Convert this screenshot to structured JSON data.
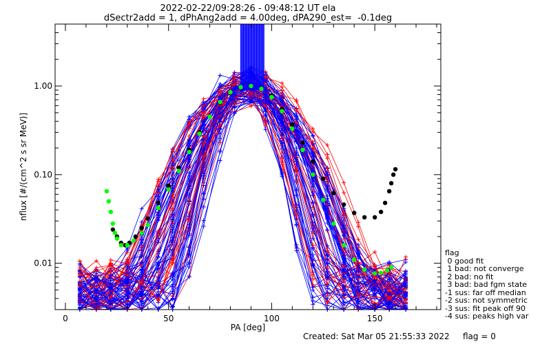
{
  "chart_data": {
    "type": "line",
    "title": "2022-02-22/09:28:26 - 09:48:12 UT ela",
    "subtitle": "dSectr2add = 1, dPhAng2add = 4.00deg, dPA290_est=  -0.1deg",
    "xlabel": "PA [deg]",
    "ylabel": "nflux [#/(cm^2 s sr MeV)]",
    "xlim": [
      -5,
      182
    ],
    "ylim": [
      0.003,
      5.0
    ],
    "yscale": "log",
    "x_ticks": [
      0,
      50,
      100,
      150
    ],
    "x_tick_labels": [
      "0",
      "50",
      "100",
      "150"
    ],
    "y_ticks": [
      0.01,
      0.1,
      1.0
    ],
    "y_tick_labels": [
      "0.01",
      "0.10",
      "1.00"
    ],
    "series": [
      {
        "color": "#000000",
        "marker": "dot",
        "x": [
          23,
          25,
          27,
          29,
          31,
          34,
          37,
          40,
          45,
          50,
          55,
          60,
          65,
          70,
          75,
          80,
          85,
          90,
          95,
          100,
          105,
          110,
          115,
          120,
          125,
          130,
          135,
          140,
          145,
          150,
          153,
          155,
          157,
          158,
          159,
          160
        ],
        "y": [
          0.024,
          0.02,
          0.017,
          0.016,
          0.017,
          0.02,
          0.025,
          0.032,
          0.048,
          0.075,
          0.12,
          0.19,
          0.3,
          0.45,
          0.65,
          0.84,
          0.96,
          1.0,
          0.94,
          0.78,
          0.55,
          0.37,
          0.23,
          0.14,
          0.09,
          0.062,
          0.046,
          0.037,
          0.033,
          0.033,
          0.038,
          0.048,
          0.065,
          0.08,
          0.1,
          0.115
        ]
      },
      {
        "color": "#00ff00",
        "marker": "dot",
        "x": [
          20,
          21,
          22,
          23,
          24,
          25,
          27,
          30,
          33,
          37,
          40,
          45,
          50,
          55,
          60,
          65,
          70,
          75,
          80,
          85,
          90,
          95,
          100,
          105,
          110,
          115,
          120,
          125,
          130,
          135,
          140,
          145,
          150,
          153,
          156,
          158
        ],
        "y": [
          0.065,
          0.05,
          0.038,
          0.028,
          0.022,
          0.019,
          0.016,
          0.016,
          0.018,
          0.022,
          0.027,
          0.042,
          0.068,
          0.11,
          0.18,
          0.29,
          0.45,
          0.66,
          0.85,
          0.97,
          1.0,
          0.93,
          0.75,
          0.52,
          0.33,
          0.19,
          0.1,
          0.052,
          0.028,
          0.016,
          0.011,
          0.0085,
          0.0077,
          0.0078,
          0.0083,
          0.009
        ]
      }
    ]
  },
  "legend": {
    "title": "flag",
    "entries": [
      " 0 good fit",
      " 1 bad: not converge",
      " 2 bad: no fit",
      " 3 bad: bad fgm state",
      "-1 sus: far off median",
      "-2 sus: not symmetric",
      "-3 sus: fit peak off 90",
      "-4 sus: peaks high var"
    ]
  },
  "footer": {
    "created": "Created: Sat Mar 05 21:55:33 2022",
    "flag": "flag = 0"
  },
  "colors": {
    "red_series": "#ff0000",
    "blue_series": "#0000ff",
    "fit_black": "#000000",
    "fit_green": "#00ff00"
  }
}
